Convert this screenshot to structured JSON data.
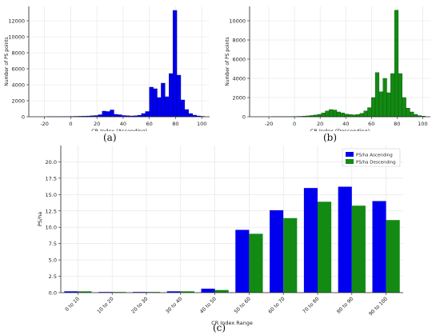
{
  "captions": {
    "a": "(a)",
    "b": "(b)",
    "c": "(c)"
  },
  "chart_data": [
    {
      "id": "a",
      "type": "bar",
      "xlabel": "CR Index (Ascending)",
      "ylabel": "Number of PS points",
      "xlim": [
        -32,
        106
      ],
      "ylim": [
        0,
        13800
      ],
      "xticks": [
        -20,
        0,
        20,
        40,
        60,
        80,
        100
      ],
      "yticks": [
        0,
        2000,
        4000,
        6000,
        8000,
        10000,
        12000
      ],
      "bin_width": 3,
      "color": "#0000ee",
      "edge": "#00008a",
      "grid": true,
      "bins_start": [
        -18,
        -15,
        -12,
        -9,
        -6,
        -3,
        0,
        3,
        6,
        9,
        12,
        15,
        18,
        21,
        24,
        27,
        30,
        33,
        36,
        39,
        42,
        45,
        48,
        51,
        54,
        57,
        60,
        63,
        66,
        69,
        72,
        75,
        78,
        81,
        84,
        87,
        90,
        93,
        96,
        99
      ],
      "values": [
        5,
        8,
        10,
        12,
        18,
        25,
        40,
        50,
        60,
        70,
        90,
        120,
        150,
        250,
        700,
        650,
        850,
        300,
        250,
        150,
        120,
        100,
        120,
        180,
        400,
        650,
        3700,
        3500,
        2400,
        4200,
        2500,
        5400,
        13300,
        5200,
        2100,
        900,
        400,
        200,
        100,
        50
      ]
    },
    {
      "id": "b",
      "type": "bar",
      "xlabel": "CR Index (Descending)",
      "ylabel": "Number of PS points",
      "xlim": [
        -35,
        106
      ],
      "ylim": [
        0,
        11500
      ],
      "xticks": [
        -20,
        0,
        20,
        40,
        60,
        80,
        100
      ],
      "yticks": [
        0,
        2000,
        4000,
        6000,
        8000,
        10000
      ],
      "bin_width": 3,
      "color": "#138a13",
      "edge": "#0a4f0a",
      "grid": true,
      "bins_start": [
        -18,
        -15,
        -12,
        -9,
        -6,
        -3,
        0,
        3,
        6,
        9,
        12,
        15,
        18,
        21,
        24,
        27,
        30,
        33,
        36,
        39,
        42,
        45,
        48,
        51,
        54,
        57,
        60,
        63,
        66,
        69,
        72,
        75,
        78,
        81,
        84,
        87,
        90,
        93,
        96,
        99
      ],
      "values": [
        5,
        8,
        10,
        12,
        15,
        20,
        30,
        40,
        60,
        90,
        130,
        180,
        250,
        400,
        600,
        750,
        700,
        500,
        400,
        280,
        230,
        200,
        240,
        350,
        600,
        950,
        2000,
        4600,
        2600,
        4000,
        2500,
        4500,
        11100,
        4500,
        2000,
        900,
        500,
        250,
        120,
        60
      ]
    },
    {
      "id": "c",
      "type": "bar",
      "xlabel": "CR Index Range",
      "ylabel": "PS/ha",
      "ylim": [
        0,
        22.5
      ],
      "yticks": [
        0.0,
        2.5,
        5.0,
        7.5,
        10.0,
        12.5,
        15.0,
        17.5,
        20.0
      ],
      "ytick_labels": [
        "0.0",
        "2.5",
        "5.0",
        "7.5",
        "10.0",
        "12.5",
        "15.0",
        "17.5",
        "20.0"
      ],
      "categories": [
        "0 to 10",
        "10 to 20",
        "20 to 30",
        "30 to 40",
        "40 to 50",
        "50 to 60",
        "60 to 70",
        "70 to 80",
        "80 to 90",
        "90 to 100"
      ],
      "grid": true,
      "legend_position": "top-right",
      "series": [
        {
          "name": "PS/ha Ascending",
          "color": "#0000ee",
          "values": [
            0.2,
            0.1,
            0.1,
            0.2,
            0.6,
            9.6,
            12.6,
            16.0,
            16.2,
            14.0
          ]
        },
        {
          "name": "PS/ha Descending",
          "color": "#138a13",
          "values": [
            0.2,
            0.1,
            0.1,
            0.2,
            0.4,
            9.0,
            11.4,
            13.9,
            13.3,
            11.1
          ]
        }
      ]
    }
  ]
}
